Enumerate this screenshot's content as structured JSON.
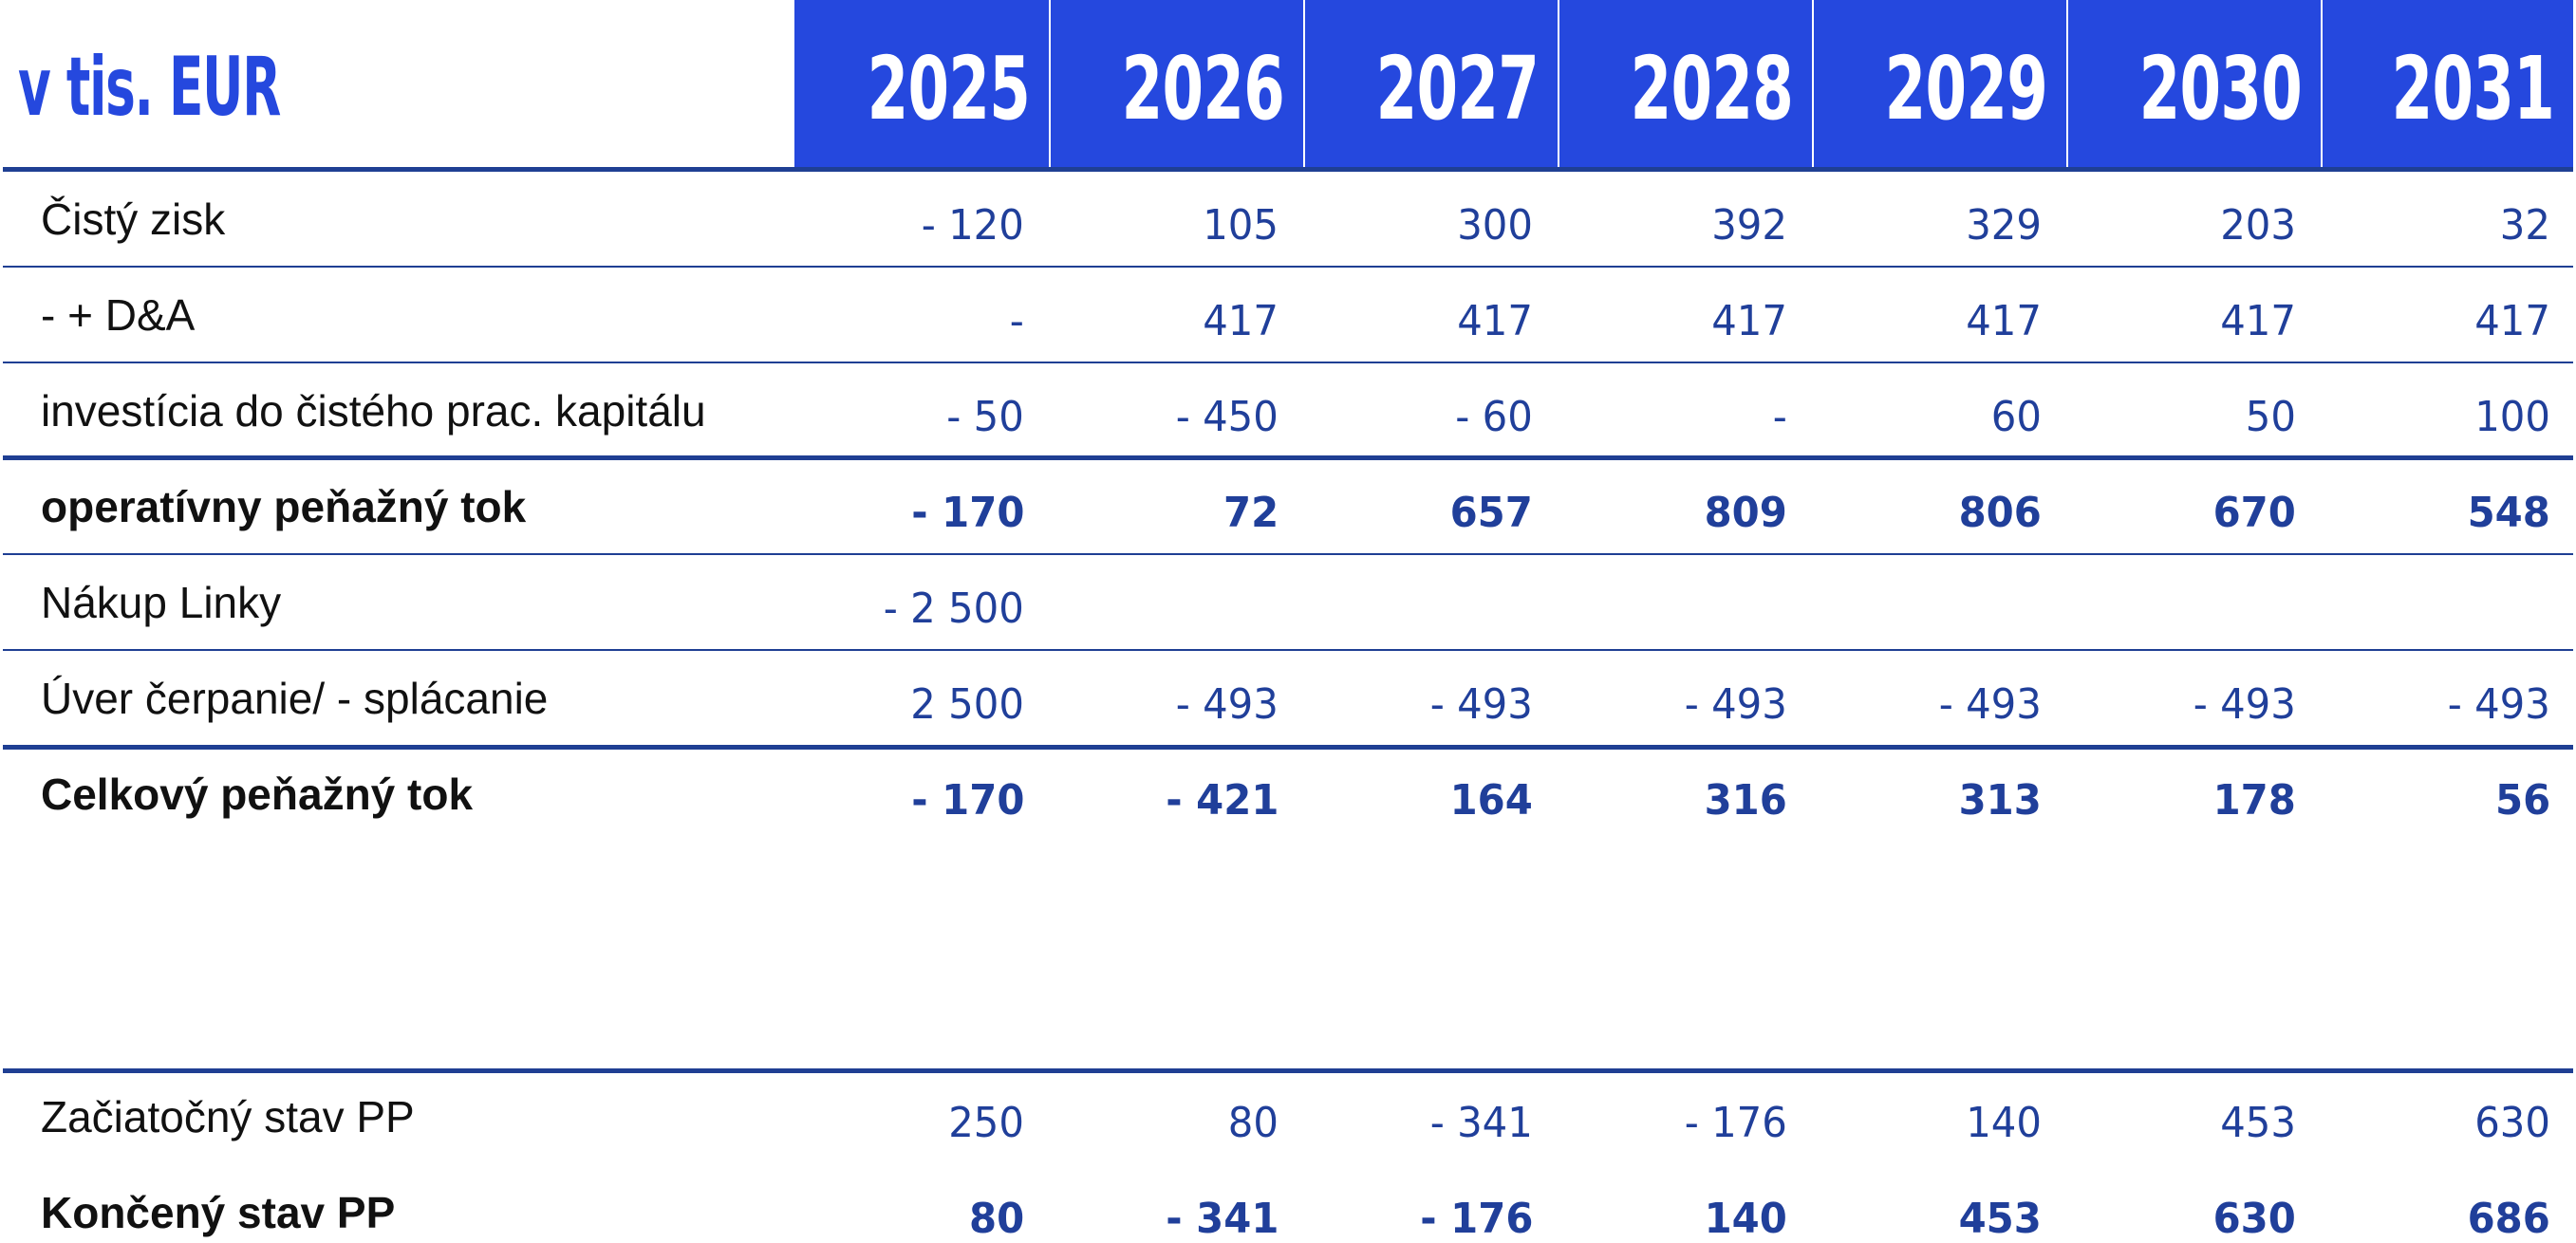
{
  "table": {
    "unit_label": "v tis. EUR",
    "years": [
      "2025",
      "2026",
      "2027",
      "2028",
      "2029",
      "2030",
      "2031"
    ],
    "rows": [
      {
        "label": "Čistý zisk",
        "bold": false,
        "values": [
          "- 120",
          "105",
          "300",
          "392",
          "329",
          "203",
          "32"
        ]
      },
      {
        "label": "- + D&A",
        "bold": false,
        "values": [
          "-",
          "417",
          "417",
          "417",
          "417",
          "417",
          "417"
        ]
      },
      {
        "label": "investícia do čistého prac. kapitálu",
        "bold": false,
        "values": [
          "- 50",
          "- 450",
          "- 60",
          "-",
          "60",
          "50",
          "100"
        ]
      },
      {
        "label": "operatívny peňažný tok",
        "bold": true,
        "values": [
          "- 170",
          "72",
          "657",
          "809",
          "806",
          "670",
          "548"
        ]
      },
      {
        "label": "Nákup Linky",
        "bold": false,
        "values": [
          "- 2 500",
          "",
          "",
          "",
          "",
          "",
          ""
        ]
      },
      {
        "label": "Úver čerpanie/ - splácanie",
        "bold": false,
        "values": [
          "2 500",
          "- 493",
          "- 493",
          "- 493",
          "- 493",
          "- 493",
          "- 493"
        ]
      },
      {
        "label": "Celkový peňažný tok",
        "bold": true,
        "values": [
          "- 170",
          "- 421",
          "164",
          "316",
          "313",
          "178",
          "56"
        ]
      },
      {
        "label": "Začiatočný stav PP",
        "bold": false,
        "values": [
          "250",
          "80",
          "- 341",
          "- 176",
          "140",
          "453",
          "630"
        ]
      },
      {
        "label": "Končený stav PP",
        "bold": true,
        "values": [
          "80",
          "- 341",
          "- 176",
          "140",
          "453",
          "630",
          "686"
        ]
      }
    ]
  },
  "colors": {
    "header_blue": "#2548de",
    "value_blue": "#203f9a",
    "rule_blue": "#1f3f93"
  }
}
